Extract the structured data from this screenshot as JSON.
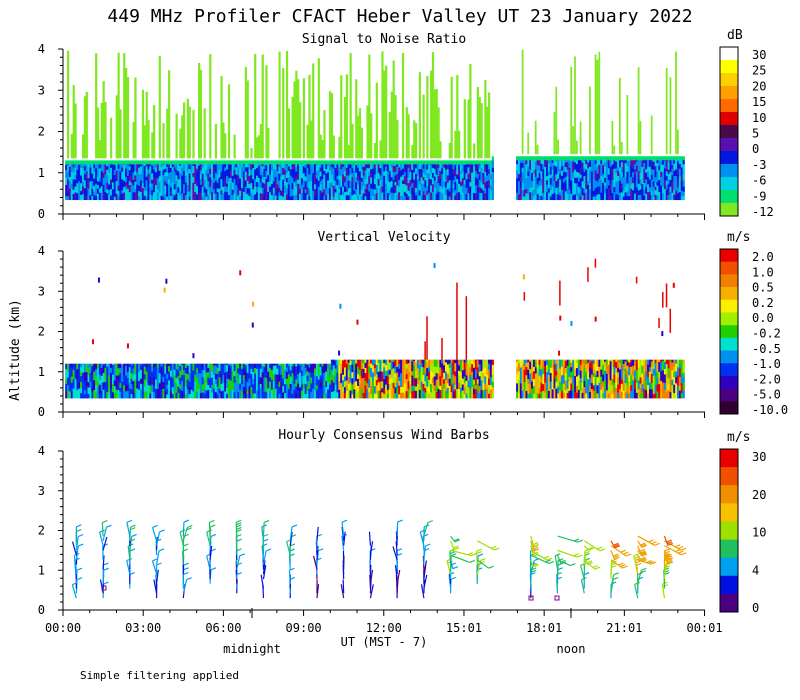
{
  "title": "449 MHz Profiler CFACT Heber Valley UT 23 January 2022",
  "ylabel": "Altitude (km)",
  "xlabel": "UT  (MST - 7)",
  "footer": "Simple filtering applied",
  "marker_midnight": "midnight",
  "marker_noon": "noon",
  "chart_data": [
    {
      "type": "heatmap",
      "title": "Signal to Noise Ratio",
      "colorbar_unit": "dB",
      "colorbar_labels": [
        "30",
        "25",
        "20",
        "15",
        "10",
        "5",
        "0",
        "-3",
        "-6",
        "-9",
        "-12"
      ],
      "colorbar_colors": [
        "#ffffff",
        "#ffff00",
        "#ffd000",
        "#ffa000",
        "#ff6a00",
        "#e00000",
        "#4a0a4a",
        "#5a10b0",
        "#0018e0",
        "#0090f0",
        "#00d0e0",
        "#00e070",
        "#80e820"
      ],
      "yticks": [
        0,
        1,
        2,
        3,
        4
      ],
      "ylim": [
        0,
        4
      ],
      "data_gap_hours": [
        16.1,
        16.9
      ]
    },
    {
      "type": "heatmap",
      "title": "Vertical Velocity",
      "colorbar_unit": "m/s",
      "colorbar_labels": [
        "2.0",
        "1.0",
        "0.5",
        "0.2",
        "0.0",
        "-0.2",
        "-0.5",
        "-1.0",
        "-2.0",
        "-5.0",
        "-10.0"
      ],
      "colorbar_colors": [
        "#e80000",
        "#f05000",
        "#f08000",
        "#f8b000",
        "#f8f000",
        "#a0f000",
        "#20d000",
        "#00e0d0",
        "#0090f0",
        "#0030f0",
        "#3000c0",
        "#4a0080",
        "#300030"
      ],
      "yticks": [
        0,
        1,
        2,
        3,
        4
      ],
      "ylim": [
        0,
        4
      ]
    },
    {
      "type": "wind_barbs",
      "title": "Hourly Consensus Wind Barbs",
      "colorbar_unit": "m/s",
      "colorbar_labels": [
        "30",
        "20",
        "10",
        "4",
        "0"
      ],
      "colorbar_colors": [
        "#e80000",
        "#f05000",
        "#f09000",
        "#f8c000",
        "#a0e000",
        "#20c060",
        "#00a0f0",
        "#0010e0",
        "#4a0080"
      ],
      "yticks": [
        0,
        1,
        2,
        3,
        4
      ],
      "ylim": [
        0,
        4
      ]
    }
  ],
  "xticks": [
    "00:00",
    "03:00",
    "06:00",
    "09:00",
    "12:00",
    "15:01",
    "18:01",
    "21:01",
    "00:01"
  ]
}
